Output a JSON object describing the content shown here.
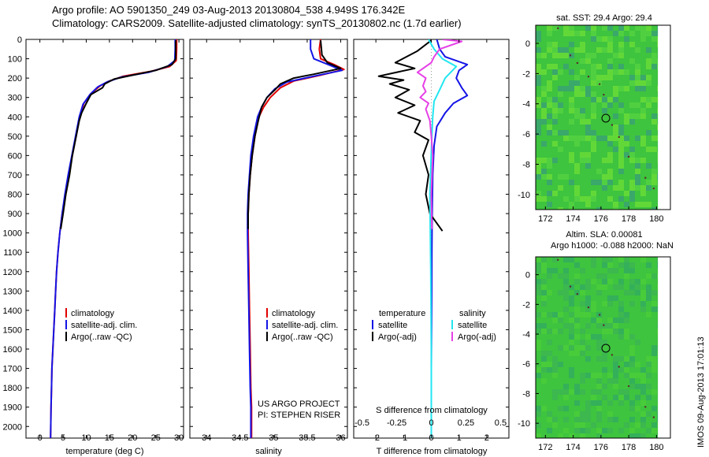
{
  "header": {
    "line1": "Argo profile: AO 5901350_249 03-Aug-2013 20130804_538 4.949S 176.342E",
    "line2": "Climatology: CARS2009. Satellite-adjusted climatology: synTS_20130802.nc (1.7d earlier)"
  },
  "side_stamp": "IMOS 09-Aug-2013 17:01:13",
  "colors": {
    "climatology": "#e00000",
    "satellite": "#1414e6",
    "argo": "#000000",
    "salinity_satellite": "#22e6f0",
    "salinity_argo": "#e640e6",
    "map_base": "#3ec43e"
  },
  "chart_data": [
    {
      "type": "line",
      "name": "temperature-profile",
      "xlabel": "temperature (deg C)",
      "ylabel": "",
      "xlim": [
        -3,
        31
      ],
      "ylim": [
        2060,
        0
      ],
      "xticks": [
        0,
        5,
        10,
        15,
        20,
        25,
        30
      ],
      "yticks": [
        0,
        100,
        200,
        300,
        400,
        500,
        600,
        700,
        800,
        900,
        1000,
        1100,
        1200,
        1300,
        1400,
        1500,
        1600,
        1700,
        1800,
        1900,
        2000
      ],
      "legend": [
        "climatology",
        "satellite-adj. clim.",
        "Argo(..raw -QC)"
      ],
      "legend_placement": "lower-middle",
      "series": [
        {
          "name": "climatology",
          "color_key": "climatology",
          "points": [
            [
              29.5,
              0
            ],
            [
              29.5,
              50
            ],
            [
              29.4,
              110
            ],
            [
              28,
              140
            ],
            [
              24,
              165
            ],
            [
              18,
              190
            ],
            [
              15,
              215
            ],
            [
              13,
              240
            ],
            [
              11,
              280
            ],
            [
              9.5,
              330
            ],
            [
              8.6,
              400
            ],
            [
              7.8,
              500
            ],
            [
              7,
              600
            ],
            [
              6.2,
              700
            ],
            [
              5.5,
              800
            ],
            [
              4.8,
              900
            ],
            [
              4.3,
              1000
            ],
            [
              3.9,
              1100
            ],
            [
              3.6,
              1200
            ],
            [
              3.4,
              1300
            ],
            [
              3.2,
              1400
            ],
            [
              3,
              1500
            ],
            [
              2.8,
              1600
            ],
            [
              2.6,
              1700
            ],
            [
              2.5,
              1800
            ],
            [
              2.4,
              1900
            ],
            [
              2.3,
              2060
            ]
          ]
        },
        {
          "name": "satellite-adj. clim.",
          "color_key": "satellite",
          "points": [
            [
              29.2,
              0
            ],
            [
              29.2,
              50
            ],
            [
              29.1,
              110
            ],
            [
              27.5,
              140
            ],
            [
              23.5,
              170
            ],
            [
              17.5,
              195
            ],
            [
              14.5,
              220
            ],
            [
              12.5,
              245
            ],
            [
              10.8,
              285
            ],
            [
              9.3,
              335
            ],
            [
              8.5,
              400
            ],
            [
              7.7,
              500
            ],
            [
              6.9,
              600
            ],
            [
              6.1,
              700
            ],
            [
              5.4,
              800
            ],
            [
              4.8,
              900
            ],
            [
              4.3,
              1000
            ],
            [
              3.9,
              1100
            ],
            [
              3.6,
              1200
            ],
            [
              3.4,
              1300
            ],
            [
              3.2,
              1400
            ],
            [
              3,
              1500
            ],
            [
              2.8,
              1600
            ],
            [
              2.6,
              1700
            ],
            [
              2.5,
              1800
            ],
            [
              2.4,
              1900
            ],
            [
              2.3,
              2060
            ]
          ]
        },
        {
          "name": "Argo(..raw -QC)",
          "color_key": "argo",
          "points": [
            [
              29.3,
              5
            ],
            [
              29.3,
              100
            ],
            [
              28.5,
              130
            ],
            [
              25,
              160
            ],
            [
              20,
              185
            ],
            [
              16,
              205
            ],
            [
              14,
              230
            ],
            [
              13.5,
              250
            ],
            [
              11,
              285
            ],
            [
              10,
              330
            ],
            [
              9,
              380
            ],
            [
              8.5,
              420
            ],
            [
              8,
              480
            ],
            [
              7.5,
              540
            ],
            [
              7,
              600
            ],
            [
              6.4,
              700
            ],
            [
              5.6,
              800
            ],
            [
              5,
              900
            ],
            [
              4.5,
              980
            ]
          ]
        }
      ]
    },
    {
      "type": "line",
      "name": "salinity-profile",
      "xlabel": "salinity",
      "ylabel": "",
      "xlim": [
        33.75,
        36.1
      ],
      "ylim": [
        2060,
        0
      ],
      "xticks": [
        34,
        34.5,
        35,
        35.5,
        36
      ],
      "legend": [
        "climatology",
        "satellite-adj. clim.",
        "Argo(..raw -QC)"
      ],
      "legend_placement": "lower-middle",
      "annotation": [
        "US ARGO PROJECT",
        "PI: STEPHEN RISER"
      ],
      "series": [
        {
          "name": "climatology",
          "color_key": "climatology",
          "points": [
            [
              35.7,
              0
            ],
            [
              35.68,
              50
            ],
            [
              35.7,
              100
            ],
            [
              35.9,
              130
            ],
            [
              36.05,
              155
            ],
            [
              35.7,
              185
            ],
            [
              35.3,
              215
            ],
            [
              35.1,
              250
            ],
            [
              34.95,
              300
            ],
            [
              34.85,
              350
            ],
            [
              34.78,
              400
            ],
            [
              34.72,
              500
            ],
            [
              34.68,
              600
            ],
            [
              34.65,
              700
            ],
            [
              34.63,
              800
            ],
            [
              34.62,
              900
            ],
            [
              34.62,
              1000
            ],
            [
              34.63,
              1200
            ],
            [
              34.64,
              1400
            ],
            [
              34.65,
              1600
            ],
            [
              34.66,
              1800
            ],
            [
              34.67,
              1900
            ],
            [
              34.67,
              2060
            ]
          ]
        },
        {
          "name": "satellite-adj. clim.",
          "color_key": "satellite",
          "points": [
            [
              35.55,
              0
            ],
            [
              35.55,
              50
            ],
            [
              35.6,
              100
            ],
            [
              35.85,
              135
            ],
            [
              36.02,
              160
            ],
            [
              35.6,
              190
            ],
            [
              35.2,
              220
            ],
            [
              35.02,
              255
            ],
            [
              34.9,
              300
            ],
            [
              34.82,
              350
            ],
            [
              34.76,
              400
            ],
            [
              34.7,
              500
            ],
            [
              34.66,
              600
            ],
            [
              34.64,
              700
            ],
            [
              34.62,
              800
            ],
            [
              34.61,
              900
            ],
            [
              34.61,
              1000
            ],
            [
              34.62,
              1200
            ],
            [
              34.63,
              1400
            ],
            [
              34.64,
              1600
            ],
            [
              34.65,
              1800
            ],
            [
              34.66,
              1900
            ],
            [
              34.66,
              2060
            ]
          ]
        },
        {
          "name": "Argo(..raw -QC)",
          "color_key": "argo",
          "points": [
            [
              35.7,
              5
            ],
            [
              35.72,
              80
            ],
            [
              35.8,
              120
            ],
            [
              36.0,
              150
            ],
            [
              35.6,
              180
            ],
            [
              35.3,
              200
            ],
            [
              35.1,
              230
            ],
            [
              35.02,
              260
            ],
            [
              34.9,
              300
            ],
            [
              34.82,
              350
            ],
            [
              34.77,
              420
            ],
            [
              34.72,
              500
            ],
            [
              34.68,
              600
            ],
            [
              34.65,
              700
            ],
            [
              34.63,
              800
            ],
            [
              34.62,
              900
            ],
            [
              34.62,
              980
            ]
          ]
        }
      ]
    },
    {
      "type": "line",
      "name": "difference-profile",
      "xlabel": "T difference from climatology",
      "xlabel2": "S difference from climatology",
      "xlim": [
        -2.8,
        2.8
      ],
      "ylim": [
        2060,
        0
      ],
      "xticks": [
        -2,
        -1,
        0,
        1,
        2
      ],
      "xticks_salinity": [
        -0.5,
        -0.25,
        0,
        0.25,
        0.5
      ],
      "legend_left": {
        "title": "temperature",
        "items": [
          "satellite",
          "Argo(-adj)"
        ]
      },
      "legend_right": {
        "title": "salinity",
        "items": [
          "satellite",
          "Argo(-adj)"
        ]
      },
      "series": [
        {
          "name": "temperature satellite",
          "color_key": "satellite",
          "points": [
            [
              0.2,
              0
            ],
            [
              0.3,
              50
            ],
            [
              0.5,
              90
            ],
            [
              1.3,
              130
            ],
            [
              1,
              160
            ],
            [
              0.9,
              200
            ],
            [
              1.1,
              250
            ],
            [
              1.3,
              290
            ],
            [
              0.8,
              330
            ],
            [
              0.5,
              380
            ],
            [
              0.2,
              450
            ],
            [
              0.1,
              550
            ],
            [
              0.05,
              700
            ],
            [
              0.03,
              900
            ],
            [
              0.02,
              1100
            ],
            [
              0.01,
              1400
            ],
            [
              0,
              1700
            ],
            [
              0,
              2060
            ]
          ]
        },
        {
          "name": "temperature Argo(-adj)",
          "color_key": "argo",
          "points": [
            [
              0,
              5
            ],
            [
              -0.5,
              60
            ],
            [
              -1.3,
              120
            ],
            [
              -0.6,
              150
            ],
            [
              -1.9,
              190
            ],
            [
              -1,
              210
            ],
            [
              -1.5,
              230
            ],
            [
              -0.8,
              260
            ],
            [
              -1.3,
              300
            ],
            [
              -0.6,
              340
            ],
            [
              -1.2,
              380
            ],
            [
              -0.4,
              420
            ],
            [
              -0.6,
              480
            ],
            [
              -0.1,
              520
            ],
            [
              -0.3,
              600
            ],
            [
              -0.1,
              700
            ],
            [
              -0.2,
              800
            ],
            [
              -0.05,
              900
            ],
            [
              0.4,
              990
            ]
          ]
        },
        {
          "name": "salinity satellite",
          "color_key": "salinity_satellite",
          "points": [
            [
              -0.1,
              0
            ],
            [
              0.1,
              50
            ],
            [
              0.4,
              100
            ],
            [
              0.9,
              140
            ],
            [
              0.5,
              200
            ],
            [
              0.3,
              260
            ],
            [
              0.1,
              320
            ],
            [
              0.05,
              400
            ],
            [
              0.02,
              500
            ],
            [
              -0.05,
              800
            ],
            [
              -0.02,
              1200
            ],
            [
              0,
              1600
            ],
            [
              0,
              2060
            ]
          ]
        },
        {
          "name": "salinity Argo(-adj)",
          "color_key": "salinity_argo",
          "points": [
            [
              0.4,
              0
            ],
            [
              1.1,
              10
            ],
            [
              0.3,
              50
            ],
            [
              0.1,
              90
            ],
            [
              0,
              120
            ],
            [
              -0.5,
              170
            ],
            [
              -0.2,
              200
            ],
            [
              -0.3,
              240
            ],
            [
              -0.2,
              270
            ],
            [
              -0.4,
              300
            ],
            [
              -0.1,
              330
            ],
            [
              -0.2,
              360
            ],
            [
              -0.05,
              420
            ],
            [
              0,
              500
            ],
            [
              0.05,
              600
            ],
            [
              0,
              800
            ],
            [
              0.02,
              980
            ]
          ]
        }
      ]
    },
    {
      "type": "heatmap",
      "name": "map-sst",
      "title": "sat. SST: 29.4 Argo: 29.4",
      "xlim": [
        171.3,
        181
      ],
      "ylim": [
        -11,
        1.2
      ],
      "xticks": [
        172,
        174,
        176,
        178,
        180
      ],
      "yticks": [
        0,
        -2,
        -4,
        -6,
        -8,
        -10
      ],
      "marker": [
        176.35,
        -4.95
      ]
    },
    {
      "type": "heatmap",
      "name": "map-sla",
      "title_line1": "Altim. SLA: 0.00081",
      "title_line2": "Argo h1000: -0.088 h2000: NaN",
      "xlim": [
        171.3,
        181
      ],
      "ylim": [
        -11,
        1.2
      ],
      "xticks": [
        172,
        174,
        176,
        178,
        180
      ],
      "yticks": [
        0,
        -2,
        -4,
        -6,
        -8,
        -10
      ],
      "marker": [
        176.35,
        -4.95
      ]
    }
  ]
}
